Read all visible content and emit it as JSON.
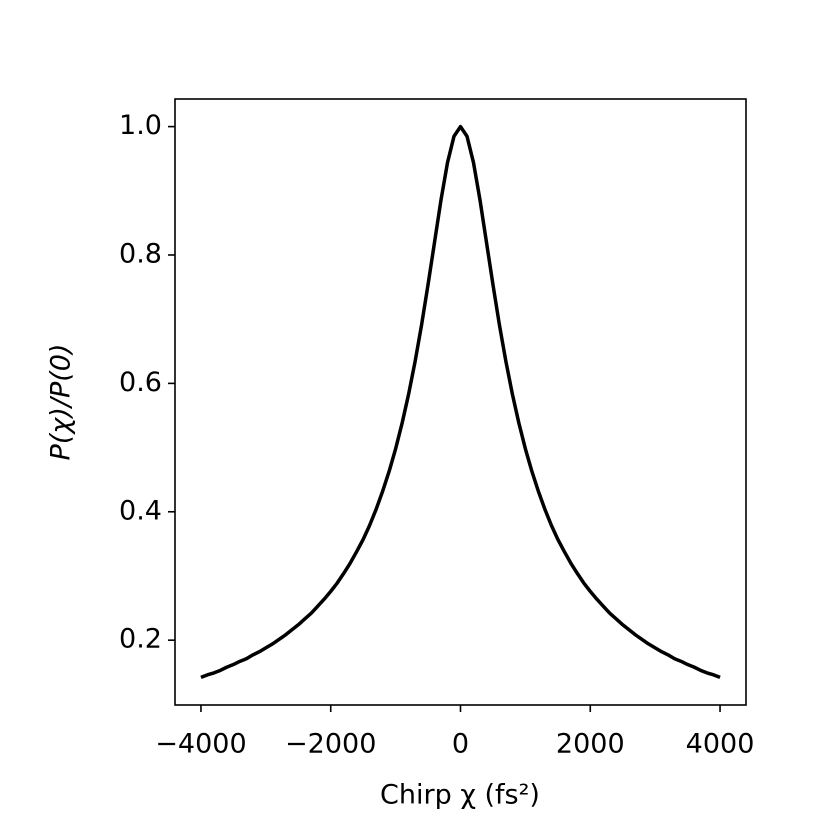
{
  "chart_data": {
    "type": "line",
    "x_label": "Chirp χ (fs²)",
    "y_label": "P(χ)/P(0)",
    "x": [
      -4000,
      -3900,
      -3800,
      -3700,
      -3600,
      -3500,
      -3400,
      -3300,
      -3200,
      -3100,
      -3000,
      -2900,
      -2800,
      -2700,
      -2600,
      -2500,
      -2400,
      -2300,
      -2200,
      -2100,
      -2000,
      -1900,
      -1800,
      -1700,
      -1600,
      -1500,
      -1400,
      -1300,
      -1200,
      -1100,
      -1000,
      -900,
      -800,
      -700,
      -600,
      -500,
      -400,
      -300,
      -200,
      -100,
      0,
      100,
      200,
      300,
      400,
      500,
      600,
      700,
      800,
      900,
      1000,
      1100,
      1200,
      1300,
      1400,
      1500,
      1600,
      1700,
      1800,
      1900,
      2000,
      2100,
      2200,
      2300,
      2400,
      2500,
      2600,
      2700,
      2800,
      2900,
      3000,
      3100,
      3200,
      3300,
      3400,
      3500,
      3600,
      3700,
      3800,
      3900,
      4000
    ],
    "series": [
      {
        "color": "#000000",
        "values": [
          0.142,
          0.146,
          0.149,
          0.153,
          0.158,
          0.162,
          0.167,
          0.171,
          0.177,
          0.182,
          0.188,
          0.194,
          0.201,
          0.208,
          0.216,
          0.224,
          0.233,
          0.242,
          0.253,
          0.264,
          0.276,
          0.289,
          0.304,
          0.32,
          0.338,
          0.357,
          0.379,
          0.404,
          0.432,
          0.463,
          0.498,
          0.538,
          0.583,
          0.634,
          0.691,
          0.754,
          0.82,
          0.886,
          0.944,
          0.985,
          1.0,
          0.985,
          0.944,
          0.886,
          0.82,
          0.754,
          0.691,
          0.634,
          0.583,
          0.538,
          0.498,
          0.463,
          0.432,
          0.404,
          0.379,
          0.357,
          0.338,
          0.32,
          0.304,
          0.289,
          0.276,
          0.264,
          0.253,
          0.242,
          0.233,
          0.224,
          0.216,
          0.208,
          0.201,
          0.194,
          0.188,
          0.182,
          0.177,
          0.171,
          0.167,
          0.162,
          0.158,
          0.153,
          0.149,
          0.146,
          0.142
        ]
      }
    ],
    "xlim": [
      -4400,
      4400
    ],
    "ylim": [
      0.099,
      1.043
    ],
    "xticks": [
      {
        "value": -4000,
        "label": "−4000"
      },
      {
        "value": -2000,
        "label": "−2000"
      },
      0,
      2000,
      4000
    ],
    "yticks": [
      0.2,
      0.4,
      0.6,
      0.8,
      {
        "value": 1,
        "label": "1.0"
      }
    ]
  }
}
